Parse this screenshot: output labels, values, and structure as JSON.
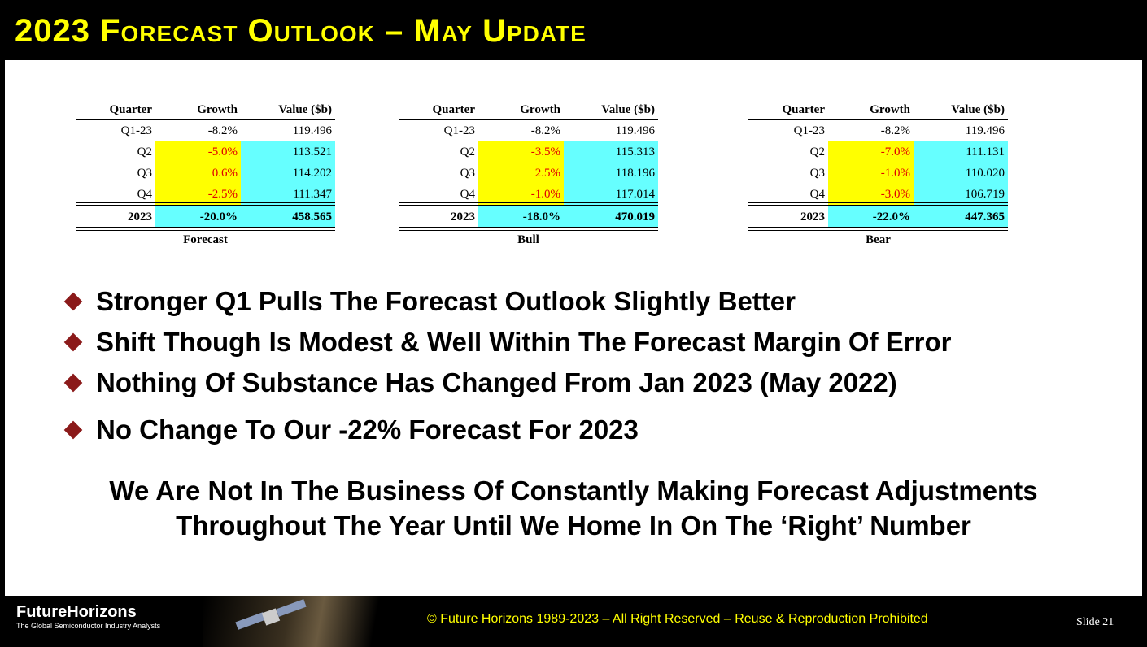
{
  "header": {
    "title": "2023 Forecast Outlook – May Update"
  },
  "tables": [
    {
      "columns": [
        "Quarter",
        "Growth",
        "Value ($b)"
      ],
      "rows": [
        [
          "Q1-23",
          "-8.2%",
          "119.496"
        ],
        [
          "Q2",
          "-5.0%",
          "113.521"
        ],
        [
          "Q3",
          "0.6%",
          "114.202"
        ],
        [
          "Q4",
          "-2.5%",
          "111.347"
        ]
      ],
      "total": [
        "2023",
        "-20.0%",
        "458.565"
      ],
      "caption": "Forecast"
    },
    {
      "columns": [
        "Quarter",
        "Growth",
        "Value ($b)"
      ],
      "rows": [
        [
          "Q1-23",
          "-8.2%",
          "119.496"
        ],
        [
          "Q2",
          "-3.5%",
          "115.313"
        ],
        [
          "Q3",
          "2.5%",
          "118.196"
        ],
        [
          "Q4",
          "-1.0%",
          "117.014"
        ]
      ],
      "total": [
        "2023",
        "-18.0%",
        "470.019"
      ],
      "caption": "Bull"
    },
    {
      "columns": [
        "Quarter",
        "Growth",
        "Value ($b)"
      ],
      "rows": [
        [
          "Q1-23",
          "-8.2%",
          "119.496"
        ],
        [
          "Q2",
          "-7.0%",
          "111.131"
        ],
        [
          "Q3",
          "-1.0%",
          "110.020"
        ],
        [
          "Q4",
          "-3.0%",
          "106.719"
        ]
      ],
      "total": [
        "2023",
        "-22.0%",
        "447.365"
      ],
      "caption": "Bear"
    }
  ],
  "bullets": [
    "Stronger Q1 Pulls The Forecast Outlook Slightly Better",
    "Shift Though Is Modest & Well Within The Forecast Margin Of Error",
    "Nothing Of Substance Has Changed From Jan 2023 (May 2022)",
    "No Change To Our -22% Forecast For 2023"
  ],
  "statement": [
    "We Are Not In The Business Of Constantly Making Forecast Adjustments",
    "Throughout The Year Until We Home In On The ‘Right’ Number"
  ],
  "footer": {
    "brand": "FutureHorizons",
    "tagline": "The Global Semiconductor Industry Analysts",
    "copyright": "© Future Horizons 1989-2023 – All Right Reserved – Reuse & Reproduction Prohibited",
    "slide": "Slide 21"
  }
}
